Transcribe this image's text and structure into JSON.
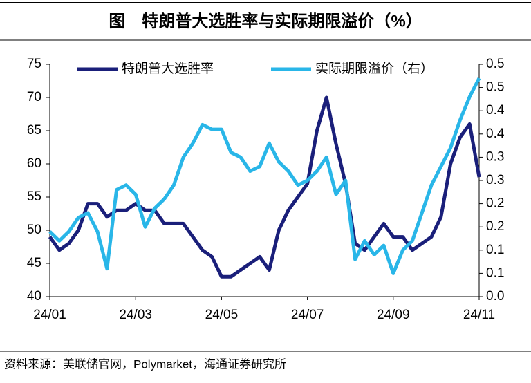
{
  "chart_data": {
    "type": "line",
    "title": "图　特朗普大选胜率与实际期限溢价（%）",
    "source": "资料来源：美联储官网，Polymarket，海通证券研究所",
    "categories": [
      "24/01",
      null,
      null,
      null,
      null,
      null,
      null,
      null,
      null,
      "24/03",
      null,
      null,
      null,
      null,
      null,
      null,
      null,
      null,
      "24/05",
      null,
      null,
      null,
      null,
      null,
      null,
      null,
      null,
      "24/07",
      null,
      null,
      null,
      null,
      null,
      null,
      null,
      null,
      "24/09",
      null,
      null,
      null,
      null,
      null,
      null,
      null,
      null,
      "24/11"
    ],
    "series": [
      {
        "name": "特朗普大选胜率",
        "color": "#1a1f7a",
        "axis": "y",
        "values": [
          49,
          47,
          48,
          50,
          54,
          54,
          52,
          53,
          53,
          54,
          53,
          53,
          51,
          51,
          51,
          49,
          47,
          46,
          43,
          43,
          44,
          45,
          46,
          44,
          50,
          53,
          55,
          57,
          65,
          70,
          63,
          57,
          48,
          47,
          49,
          51,
          49,
          49,
          47,
          48,
          49,
          52,
          60,
          64,
          66,
          58
        ]
      },
      {
        "name": "实际期限溢价（右）",
        "color": "#29b6e8",
        "axis": "y2",
        "values": [
          0.14,
          0.12,
          0.14,
          0.17,
          0.18,
          0.14,
          0.06,
          0.23,
          0.24,
          0.22,
          0.15,
          0.19,
          0.21,
          0.24,
          0.3,
          0.33,
          0.37,
          0.36,
          0.36,
          0.31,
          0.3,
          0.27,
          0.28,
          0.33,
          0.29,
          0.27,
          0.24,
          0.25,
          0.27,
          0.3,
          0.22,
          0.25,
          0.08,
          0.12,
          0.09,
          0.11,
          0.05,
          0.1,
          0.12,
          0.18,
          0.24,
          0.28,
          0.32,
          0.38,
          0.43,
          0.47
        ]
      }
    ],
    "ylim": [
      40,
      75
    ],
    "yticks": [
      40,
      45,
      50,
      55,
      60,
      65,
      70,
      75
    ],
    "y2lim": [
      0,
      0.5
    ],
    "y2ticks": [
      {
        "value": 0,
        "label": "0.0"
      },
      {
        "value": 0.05,
        "label": "0.1"
      },
      {
        "value": 0.1,
        "label": "0.1"
      },
      {
        "value": 0.15,
        "label": "0.2"
      },
      {
        "value": 0.2,
        "label": "0.2"
      },
      {
        "value": 0.25,
        "label": "0.3"
      },
      {
        "value": 0.3,
        "label": "0.3"
      },
      {
        "value": 0.35,
        "label": "0.4"
      },
      {
        "value": 0.4,
        "label": "0.4"
      },
      {
        "value": 0.45,
        "label": "0.5"
      },
      {
        "value": 0.5,
        "label": "0.5"
      }
    ],
    "legend": "top"
  }
}
